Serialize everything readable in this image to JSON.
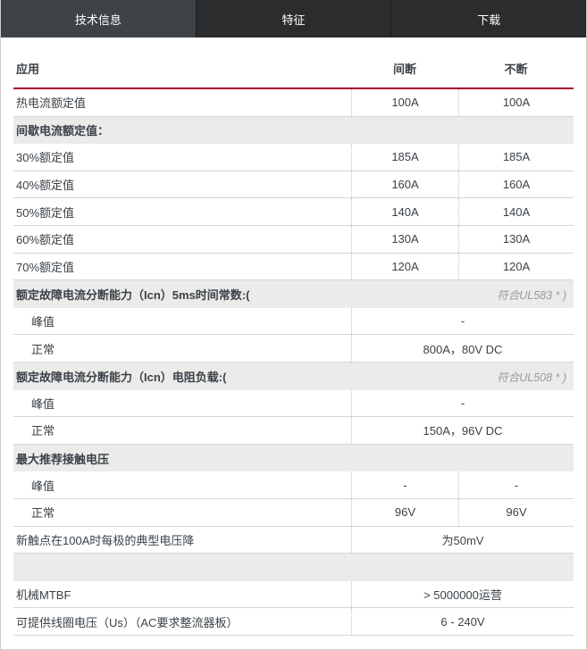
{
  "tabs": [
    {
      "label": "技术信息",
      "active": true
    },
    {
      "label": "特征",
      "active": false
    },
    {
      "label": "下载",
      "active": false
    }
  ],
  "table": {
    "columns": [
      "应用",
      "间断",
      "不断"
    ],
    "rows": [
      {
        "type": "data",
        "label": "热电流额定值",
        "values": [
          "100A",
          "100A"
        ]
      },
      {
        "type": "section",
        "label": "间歇电流额定值：",
        "note": ""
      },
      {
        "type": "data",
        "label": "30%额定值",
        "values": [
          "185A",
          "185A"
        ]
      },
      {
        "type": "data",
        "label": "40%额定值",
        "values": [
          "160A",
          "160A"
        ]
      },
      {
        "type": "data",
        "label": "50%额定值",
        "values": [
          "140A",
          "140A"
        ]
      },
      {
        "type": "data",
        "label": "60%额定值",
        "values": [
          "130A",
          "130A"
        ]
      },
      {
        "type": "data",
        "label": "70%额定值",
        "values": [
          "120A",
          "120A"
        ]
      },
      {
        "type": "section",
        "label": "额定故障电流分断能力（Icn）5ms时间常数:(",
        "note": "符合UL583 * )"
      },
      {
        "type": "span",
        "label": "峰值",
        "value": "-",
        "indent": true
      },
      {
        "type": "span",
        "label": "正常",
        "value": "800A，80V DC",
        "indent": true
      },
      {
        "type": "section",
        "label": "额定故障电流分断能力（Icn）电阻负载:(",
        "note": "符合UL508 * )"
      },
      {
        "type": "span",
        "label": "峰值",
        "value": "-",
        "indent": true
      },
      {
        "type": "span",
        "label": "正常",
        "value": "150A，96V DC",
        "indent": true
      },
      {
        "type": "section",
        "label": "最大推荐接触电压",
        "note": ""
      },
      {
        "type": "data",
        "label": "峰值",
        "values": [
          "-",
          "-"
        ],
        "indent": true
      },
      {
        "type": "data",
        "label": "正常",
        "values": [
          "96V",
          "96V"
        ],
        "indent": true
      },
      {
        "type": "span",
        "label": "新触点在100A时每极的典型电压降",
        "value": "为50mV"
      },
      {
        "type": "section",
        "label": "",
        "note": ""
      },
      {
        "type": "span",
        "label": "机械MTBF",
        "value": "> 5000000运营"
      },
      {
        "type": "span",
        "label": "可提供线圈电压（Us）（AC要求整流器板）",
        "value": "6 - 240V"
      }
    ]
  },
  "colors": {
    "accent_line": "#a50034",
    "active_tab_bg": "#3f4347",
    "inactive_tab_bg": "#2a2c2e",
    "tab_text": "#ffffff",
    "section_row_bg": "#ebebea",
    "text": "#3b4248",
    "note_text": "#9b9b9b"
  }
}
